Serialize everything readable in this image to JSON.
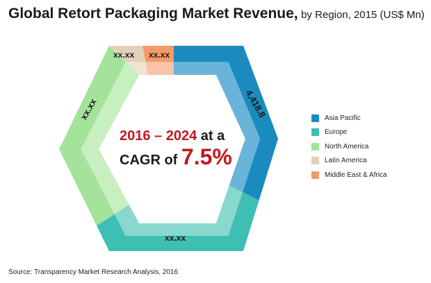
{
  "chart_data": {
    "type": "pie",
    "title": "Global Retort Packaging Market Revenue,",
    "subtitle": "by Region, 2015 (US$ Mn)",
    "series": [
      {
        "name": "Asia Pacific",
        "value": 4418.8,
        "label": "4,418.8",
        "color": "#1b8bbf",
        "inner_color": "#6ab4da"
      },
      {
        "name": "Europe",
        "value_label": "xx.xx",
        "label": "xx.xx",
        "color": "#3ebfb4",
        "inner_color": "#88d8cf"
      },
      {
        "name": "North America",
        "value_label": "xx.xx",
        "label": "xx.xx",
        "color": "#a3e39a",
        "inner_color": "#c8efc0"
      },
      {
        "name": "Latin America",
        "value_label": "xx.xx",
        "label": "xx.xx",
        "color": "#e2d1b9",
        "inner_color": "#efe3d4"
      },
      {
        "name": "Middle East & Africa",
        "value_label": "xx.xx",
        "label": "xx.xx",
        "color": "#f39a6b",
        "inner_color": "#f8c3a6"
      }
    ],
    "legend_position": "right"
  },
  "center": {
    "years": "2016 – 2024",
    "at_a": " at a",
    "cagr_of": "CAGR of ",
    "cagr_value": "7.5%"
  },
  "source": "Source: Transparency Market Research Analysis, 2016"
}
